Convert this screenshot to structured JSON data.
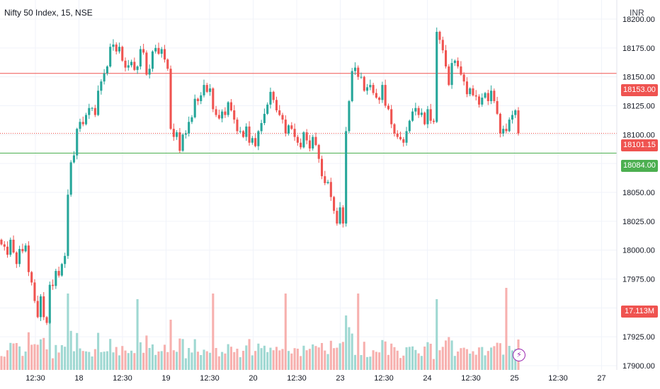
{
  "header": {
    "symbol": "Nifty 50 Index, 15, NSE",
    "currency": "INR"
  },
  "colors": {
    "up": "#26a69a",
    "down": "#ef5350",
    "vol_up": "#9fd8d2",
    "vol_down": "#f7b0ae",
    "resistance": "#ef5350",
    "support": "#4caf50",
    "grid": "#f0f3fa"
  },
  "price_tags": {
    "resistance": {
      "label": "18153.00",
      "value": 18153.0
    },
    "last": {
      "label": "18101.15",
      "value": 18101.15
    },
    "support": {
      "label": "18084.00",
      "value": 18084.0
    },
    "volume": {
      "label": "17.113M"
    }
  },
  "flash_icon": "lightning-icon",
  "chart_data": {
    "type": "candlestick",
    "symbol": "Nifty 50 Index",
    "interval": "15",
    "exchange": "NSE",
    "y_axis": {
      "currency": "INR",
      "ylim": [
        17900,
        18210
      ],
      "ticks": [
        "18200.00",
        "18175.00",
        "18150.00",
        "18125.00",
        "18100.00",
        "18075.00",
        "18050.00",
        "18025.00",
        "18000.00",
        "17975.00",
        "17950.00",
        "17925.00",
        "17900.00"
      ]
    },
    "x_axis": {
      "ticks": [
        "12:30",
        "18",
        "12:30",
        "19",
        "12:30",
        "20",
        "12:30",
        "23",
        "12:30",
        "24",
        "12:30",
        "25",
        "12:30",
        "27"
      ]
    },
    "horizontal_lines": [
      {
        "value": 18153.0,
        "style": "solid",
        "color": "#ef5350"
      },
      {
        "value": 18084.0,
        "style": "solid",
        "color": "#4caf50"
      },
      {
        "value": 18101.15,
        "style": "dotted",
        "color": "#ef5350"
      }
    ],
    "grid": true,
    "candle_closes": [
      18005,
      18003,
      17996,
      18009,
      17998,
      17988,
      18001,
      17999,
      18004,
      17981,
      17972,
      17956,
      17942,
      17960,
      17942,
      17937,
      17970,
      17969,
      17982,
      17978,
      17988,
      17995,
      18048,
      18076,
      18082,
      18105,
      18111,
      18109,
      18117,
      18123,
      18123,
      18117,
      18138,
      18146,
      18153,
      18159,
      18176,
      18178,
      18172,
      18176,
      18164,
      18158,
      18160,
      18163,
      18156,
      18159,
      18174,
      18171,
      18152,
      18157,
      18172,
      18175,
      18170,
      18174,
      18165,
      18157,
      18105,
      18098,
      18102,
      18086,
      18100,
      18101,
      18111,
      18115,
      18131,
      18129,
      18134,
      18143,
      18137,
      18140,
      18122,
      18117,
      18114,
      18120,
      18117,
      18128,
      18121,
      18113,
      18103,
      18103,
      18098,
      18107,
      18093,
      18097,
      18090,
      18103,
      18110,
      18118,
      18126,
      18137,
      18130,
      18121,
      18117,
      18113,
      18101,
      18108,
      18105,
      18098,
      18093,
      18089,
      18102,
      18095,
      18088,
      18098,
      18091,
      18079,
      18064,
      18058,
      18059,
      18046,
      18034,
      18023,
      18037,
      18023,
      18103,
      18129,
      18155,
      18158,
      18150,
      18150,
      18138,
      18141,
      18143,
      18136,
      18132,
      18130,
      18143,
      18125,
      18122,
      18109,
      18101,
      18098,
      18096,
      18093,
      18103,
      18112,
      18120,
      18123,
      18117,
      18119,
      18109,
      18122,
      18112,
      18111,
      18189,
      18182,
      18173,
      18159,
      18143,
      18162,
      18164,
      18159,
      18152,
      18146,
      18135,
      18140,
      18134,
      18133,
      18126,
      18132,
      18136,
      18129,
      18138,
      18129,
      18118,
      18101,
      18105,
      18103,
      18113,
      18117,
      18121,
      18101
    ],
    "volume_axis": {
      "last_volume": "17.113M"
    }
  }
}
